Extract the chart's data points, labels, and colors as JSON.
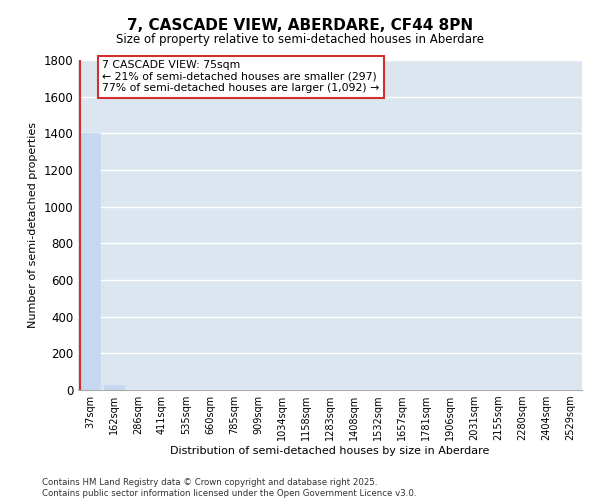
{
  "title_line1": "7, CASCADE VIEW, ABERDARE, CF44 8PN",
  "title_line2": "Size of property relative to semi-detached houses in Aberdare",
  "xlabel": "Distribution of semi-detached houses by size in Aberdare",
  "ylabel": "Number of semi-detached properties",
  "categories": [
    "37sqm",
    "162sqm",
    "286sqm",
    "411sqm",
    "535sqm",
    "660sqm",
    "785sqm",
    "909sqm",
    "1034sqm",
    "1158sqm",
    "1283sqm",
    "1408sqm",
    "1532sqm",
    "1657sqm",
    "1781sqm",
    "1906sqm",
    "2031sqm",
    "2155sqm",
    "2280sqm",
    "2404sqm",
    "2529sqm"
  ],
  "values": [
    1400,
    30,
    0,
    0,
    0,
    0,
    0,
    0,
    0,
    0,
    0,
    0,
    0,
    0,
    0,
    0,
    0,
    0,
    0,
    0,
    0
  ],
  "bar_color": "#c5d8f0",
  "subject_bar_color": "#d32f2f",
  "subject_bar_index": 0,
  "ylim": [
    0,
    1800
  ],
  "yticks": [
    0,
    200,
    400,
    600,
    800,
    1000,
    1200,
    1400,
    1600,
    1800
  ],
  "annotation_title": "7 CASCADE VIEW: 75sqm",
  "annotation_line1": "← 21% of semi-detached houses are smaller (297)",
  "annotation_line2": "77% of semi-detached houses are larger (1,092) →",
  "annotation_box_color": "#d32f2f",
  "background_color": "#dce6f0",
  "grid_color": "#ffffff",
  "footer_line1": "Contains HM Land Registry data © Crown copyright and database right 2025.",
  "footer_line2": "Contains public sector information licensed under the Open Government Licence v3.0."
}
